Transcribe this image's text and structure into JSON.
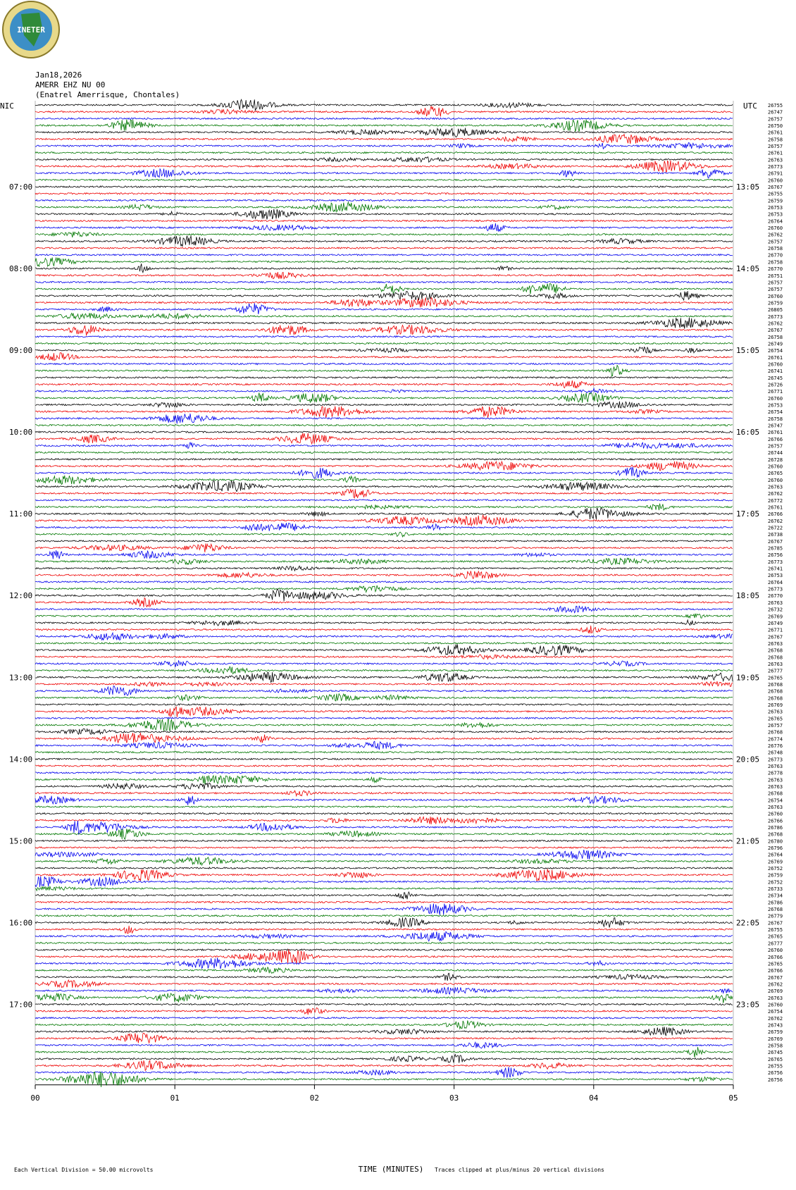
{
  "header": {
    "logo": "INETER",
    "date": "Jan18,2026",
    "station": "AMERR EHZ NU 00",
    "location": "(Enatrel Amerrisque, Chontales)"
  },
  "left_zone": "NIC",
  "right_zone": "UTC",
  "left_hours": [
    "07:00",
    "08:00",
    "09:00",
    "10:00",
    "11:00",
    "12:00",
    "13:00",
    "14:00",
    "15:00",
    "16:00",
    "17:00"
  ],
  "right_hours": [
    "13:05",
    "14:05",
    "15:05",
    "16:05",
    "17:05",
    "18:05",
    "19:05",
    "20:05",
    "21:05",
    "22:05",
    "23:05"
  ],
  "trace_counts": [
    "26755",
    "26747",
    "26757",
    "26750",
    "26761",
    "26758",
    "26757",
    "26761",
    "26763",
    "26773",
    "26791",
    "26760",
    "26767",
    "26755",
    "26759",
    "26753",
    "26753",
    "26764",
    "26760",
    "26762",
    "26757",
    "26758",
    "26770",
    "26758",
    "26770",
    "26751",
    "26757",
    "26757",
    "26760",
    "26759",
    "26805",
    "26773",
    "26762",
    "26767",
    "26758",
    "26749",
    "26754",
    "26761",
    "26760",
    "26741",
    "26745",
    "26726",
    "26771",
    "26760",
    "26753",
    "26754",
    "26758",
    "26747",
    "26761",
    "26766",
    "26757",
    "26744",
    "26728",
    "26760",
    "26765",
    "26760",
    "26763",
    "26762",
    "26772",
    "26761",
    "26766",
    "26762",
    "26722",
    "26738",
    "26767",
    "26785",
    "26756",
    "26773",
    "26741",
    "26753",
    "26764",
    "26773",
    "26770",
    "26763",
    "26732",
    "26769",
    "26749",
    "26771",
    "26767",
    "26763",
    "26768",
    "26768",
    "26763",
    "26777",
    "26765",
    "26768",
    "26768",
    "26768",
    "26769",
    "26763",
    "26765",
    "26757",
    "26768",
    "26774",
    "26776",
    "26748",
    "26773",
    "26763",
    "26778",
    "26763",
    "26763",
    "26768",
    "26754",
    "26763",
    "26760",
    "26766",
    "26786",
    "26768",
    "26780",
    "26796",
    "26764",
    "26769",
    "26752",
    "26759",
    "26752",
    "26733",
    "26734",
    "26786",
    "26768",
    "26779",
    "26767",
    "26755",
    "26765",
    "26777",
    "26760",
    "26766",
    "26765",
    "26766",
    "26767",
    "26762",
    "26769",
    "26763",
    "26760",
    "26754",
    "26762",
    "26743",
    "26759",
    "26769",
    "26758",
    "26745",
    "26765",
    "26755",
    "26756",
    "26756"
  ],
  "x_ticks": [
    "00",
    "01",
    "02",
    "03",
    "04",
    "05"
  ],
  "x_label": "TIME (MINUTES)",
  "footer": {
    "division": "Each Vertical Division =    50.00 microvolts",
    "clip": "Traces clipped at plus/minus 20 vertical divisions"
  }
}
